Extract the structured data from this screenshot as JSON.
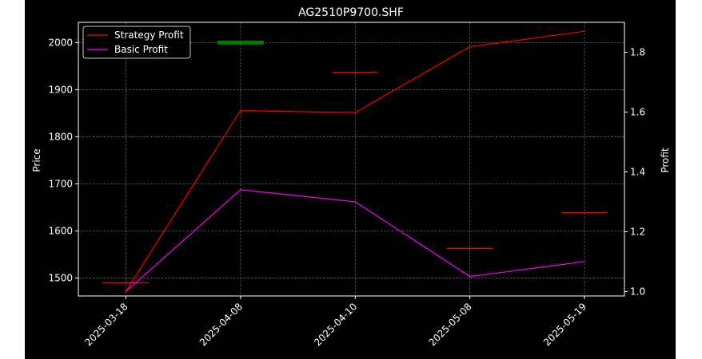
{
  "chart_data": {
    "type": "line",
    "title": "AG2510P9700.SHF",
    "xlabel": "",
    "ylabel": "Price",
    "y2label": "Profit",
    "categories": [
      "2025-03-18",
      "2025-04-08",
      "2025-04-10",
      "2025-05-08",
      "2025-05-19"
    ],
    "ylim": [
      1462,
      2043
    ],
    "y2lim": [
      0.985,
      1.9
    ],
    "yticks": [
      "1500",
      "1600",
      "1700",
      "1800",
      "1900",
      "2000"
    ],
    "y2ticks": [
      "1.0",
      "1.2",
      "1.4",
      "1.6",
      "1.8"
    ],
    "price_candles": [
      {
        "category": "2025-03-18",
        "open": 1491,
        "close": 1490,
        "color": "#ff0000"
      },
      {
        "category": "2025-04-08",
        "open": 1996,
        "close": 2004,
        "color": "#008000"
      },
      {
        "category": "2025-04-10",
        "open": 1938,
        "close": 1937,
        "color": "#ff0000"
      },
      {
        "category": "2025-05-08",
        "open": 1564,
        "close": 1563,
        "color": "#ff0000"
      },
      {
        "category": "2025-05-19",
        "open": 1640,
        "close": 1639,
        "color": "#ff0000"
      }
    ],
    "series": [
      {
        "name": "Strategy Profit",
        "axis": "right",
        "color": "#ff0000",
        "values": [
          1.0,
          1.605,
          1.598,
          1.818,
          1.87
        ]
      },
      {
        "name": "Basic Profit",
        "axis": "right",
        "color": "#ff00ff",
        "values": [
          1.0,
          1.34,
          1.3,
          1.05,
          1.1
        ]
      }
    ],
    "grid": true,
    "legend": "top-left",
    "background": "#000000",
    "foreground": "#ffffff"
  }
}
